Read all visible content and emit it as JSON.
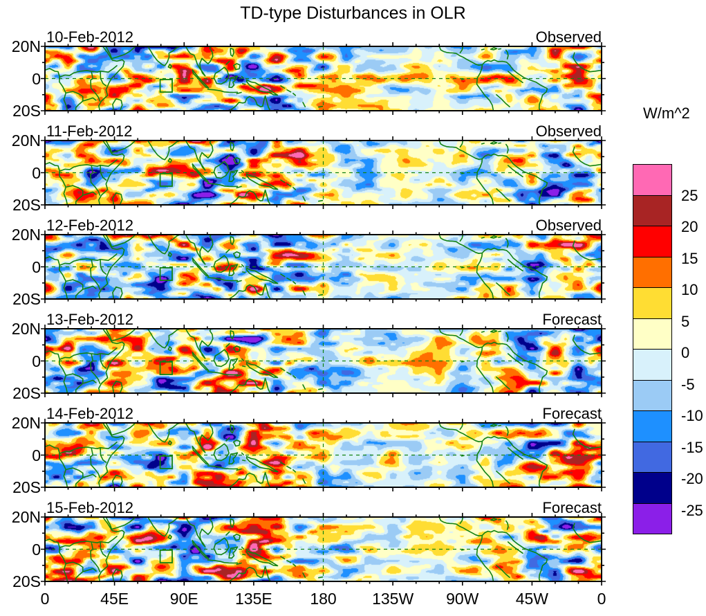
{
  "title": "TD-type Disturbances in OLR",
  "panels": [
    {
      "date": "10-Feb-2012",
      "label": "Observed"
    },
    {
      "date": "11-Feb-2012",
      "label": "Observed"
    },
    {
      "date": "12-Feb-2012",
      "label": "Observed"
    },
    {
      "date": "13-Feb-2012",
      "label": "Forecast"
    },
    {
      "date": "14-Feb-2012",
      "label": "Forecast"
    },
    {
      "date": "15-Feb-2012",
      "label": "Forecast"
    }
  ],
  "axes": {
    "y_tick_labels": [
      "20N",
      "0",
      "20S"
    ],
    "x_tick_labels": [
      "0",
      "45E",
      "90E",
      "135E",
      "180",
      "135W",
      "90W",
      "45W",
      "0"
    ]
  },
  "colorbar": {
    "units_label": "W/m^2",
    "tick_labels": [
      "25",
      "20",
      "15",
      "10",
      "5",
      "0",
      "-5",
      "-10",
      "-15",
      "-20",
      "-25"
    ],
    "colors_top_to_bottom": [
      "#ff69b4",
      "#a82424",
      "#ff0000",
      "#ff6f00",
      "#ffdd33",
      "#ffffc6",
      "#d8f1fb",
      "#9bcbf5",
      "#1e90ff",
      "#4169e1",
      "#00008b",
      "#8b1fe8"
    ]
  },
  "chart_data": {
    "type": "heatmap",
    "subtype": "filled-contour longitude-latitude anomaly maps, 6 stacked daily panels",
    "title": "TD-type Disturbances in OLR",
    "units": "W/m^2",
    "panels": [
      {
        "date": "10-Feb-2012",
        "kind": "Observed"
      },
      {
        "date": "11-Feb-2012",
        "kind": "Observed"
      },
      {
        "date": "12-Feb-2012",
        "kind": "Observed"
      },
      {
        "date": "13-Feb-2012",
        "kind": "Forecast"
      },
      {
        "date": "14-Feb-2012",
        "kind": "Forecast"
      },
      {
        "date": "15-Feb-2012",
        "kind": "Forecast"
      }
    ],
    "x_axis": {
      "ticks": [
        "0",
        "45E",
        "90E",
        "135E",
        "180",
        "135W",
        "90W",
        "45W",
        "0"
      ],
      "range_deg_lon": [
        0,
        360
      ],
      "minor_tick_step_deg": 15
    },
    "y_axis": {
      "ticks": [
        "20N",
        "0",
        "20S"
      ],
      "range_deg_lat": [
        -20,
        20
      ],
      "minor_tick_step_deg": 10
    },
    "contour_levels": [
      -25,
      -20,
      -15,
      -10,
      -5,
      0,
      5,
      10,
      15,
      20,
      25
    ],
    "palette_low_to_high": [
      "#8b1fe8",
      "#00008b",
      "#4169e1",
      "#1e90ff",
      "#9bcbf5",
      "#d8f1fb",
      "#ffffc6",
      "#ffdd33",
      "#ff6f00",
      "#ff0000",
      "#a82424",
      "#ff69b4"
    ],
    "legend_position": "right colorbar",
    "grid": "dashed green equator line and dashed green 180-deg meridian in each panel",
    "overlays": [
      "green continental coastlines and country borders",
      "green box over central Indian Ocean near 75E-82E, 1S-8S"
    ]
  }
}
